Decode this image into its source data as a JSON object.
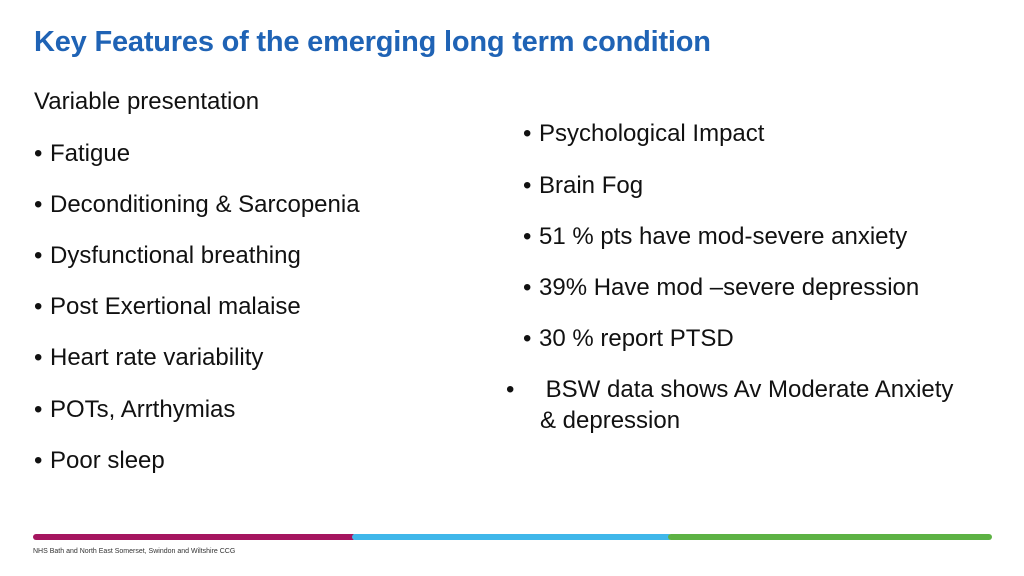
{
  "slide": {
    "title": "Key Features of the emerging long term condition",
    "subtitle": "Variable presentation"
  },
  "left_bullets": [
    "Fatigue",
    "Deconditioning &  Sarcopenia",
    "Dysfunctional breathing",
    "Post Exertional malaise",
    "Heart rate variability",
    "POTs, Arrthymias",
    "Poor sleep"
  ],
  "right_bullets": [
    "Psychological Impact",
    "Brain Fog",
    "51 % pts have mod-severe  anxiety",
    "39% Have mod –severe  depression",
    "30 % report  PTSD",
    " BSW data shows  Av Moderate Anxiety & depression"
  ],
  "bullet_glyph": "•",
  "footer": {
    "text": "NHS Bath and North East Somerset, Swindon and Wiltshire CCG"
  },
  "colors": {
    "title": "#1f63b5",
    "bar_purple": "#a5155f",
    "bar_blue": "#3fb7ea",
    "bar_green": "#5db244"
  }
}
